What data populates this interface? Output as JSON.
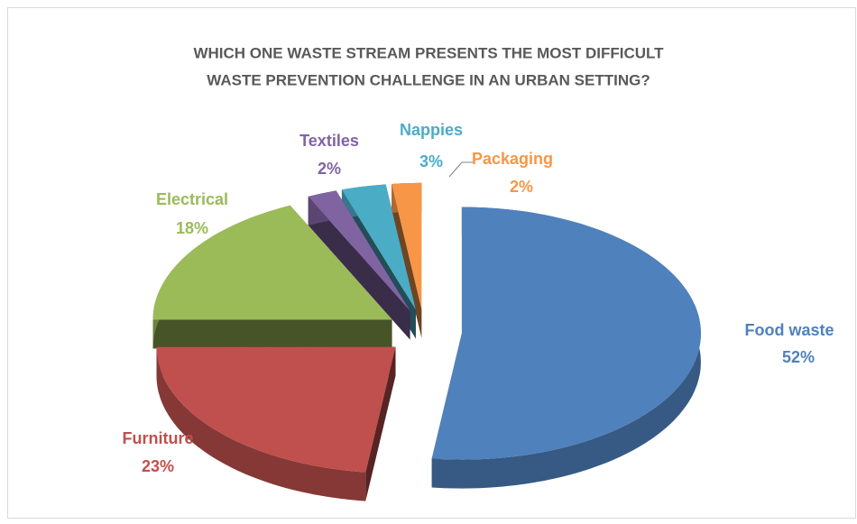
{
  "chart_data": {
    "type": "pie",
    "title": [
      "WHICH ONE WASTE STREAM PRESENTS THE MOST DIFFICULT",
      "WASTE PREVENTION CHALLENGE IN AN URBAN SETTING?"
    ],
    "categories": [
      "Food waste",
      "Furniture",
      "Electrical",
      "Textiles",
      "Nappies",
      "Packaging"
    ],
    "values": [
      52,
      23,
      18,
      2,
      3,
      2
    ],
    "value_labels": [
      "52%",
      "23%",
      "18%",
      "2%",
      "3%",
      "2%"
    ],
    "colors": [
      "#4f81bd",
      "#c0504d",
      "#9bbb59",
      "#8064a2",
      "#4bacc6",
      "#f79646"
    ]
  }
}
